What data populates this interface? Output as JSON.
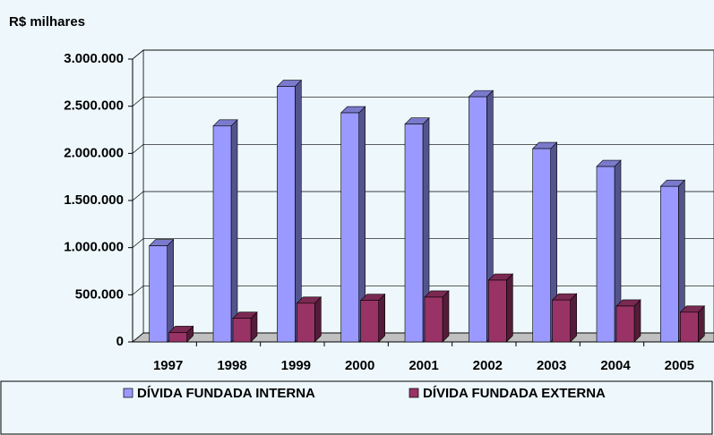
{
  "chart_data": {
    "type": "bar3d",
    "y_label": "R$ milhares",
    "categories": [
      "1997",
      "1998",
      "1999",
      "2000",
      "2001",
      "2002",
      "2003",
      "2004",
      "2005"
    ],
    "series": [
      {
        "name": "DÍVIDA FUNDADA INTERNA",
        "color": "#9999ff",
        "values": [
          1020000,
          2290000,
          2710000,
          2430000,
          2310000,
          2600000,
          2050000,
          1860000,
          1650000
        ]
      },
      {
        "name": "DÍVIDA FUNDADA EXTERNA",
        "color": "#993366",
        "values": [
          100000,
          250000,
          410000,
          440000,
          475000,
          655000,
          445000,
          380000,
          315000
        ]
      }
    ],
    "ylim": [
      0,
      3000000
    ],
    "yticks": [
      0,
      {
        "value": 500000,
        "label": "500.000"
      },
      {
        "value": 1000000,
        "label": "1.000.000"
      },
      {
        "value": 1500000,
        "label": "1.500.000"
      },
      {
        "value": 2000000,
        "label": "2.000.000"
      },
      {
        "value": 2500000,
        "label": "2.500.000"
      },
      {
        "value": 3000000,
        "label": "3.000.000"
      }
    ],
    "grid": true,
    "legend": "bottom"
  }
}
